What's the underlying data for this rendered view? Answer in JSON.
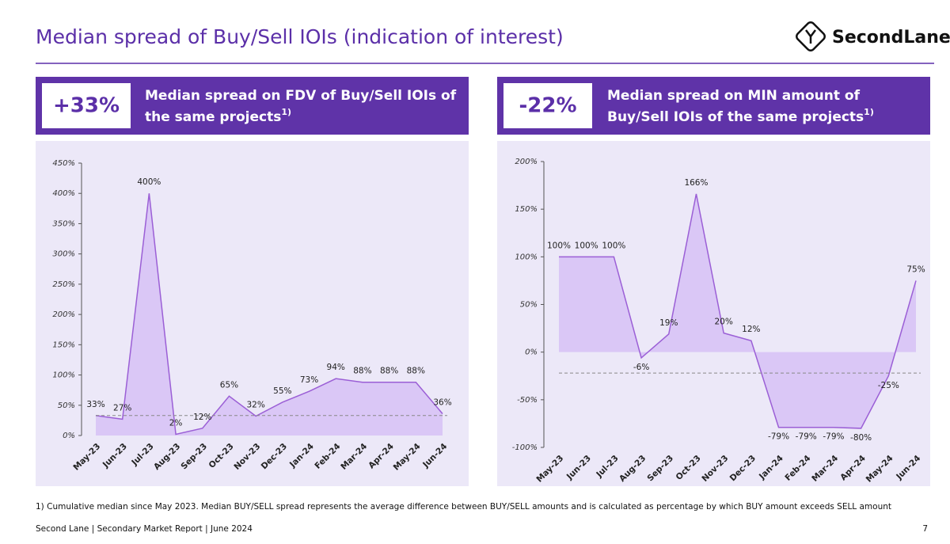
{
  "header": {
    "title": "Median spread of Buy/Sell IOIs (indication of interest)",
    "logo": "SecondLane"
  },
  "panels": [
    {
      "kpi": "+33%",
      "heading": [
        "Median spread on FDV of Buy/Sell IOIs of",
        "the same projects"
      ],
      "note_mark": "1)"
    },
    {
      "kpi": "-22%",
      "heading": [
        "Median spread on MIN amount of",
        "Buy/Sell IOIs of the same projects"
      ],
      "note_mark": "1)"
    }
  ],
  "chart_data": [
    {
      "type": "area",
      "categories": [
        "May-23",
        "Jun-23",
        "Jul-23",
        "Aug-23",
        "Sep-23",
        "Oct-23",
        "Nov-23",
        "Dec-23",
        "Jan-24",
        "Feb-24",
        "Mar-24",
        "Apr-24",
        "May-24",
        "Jun-24"
      ],
      "values": [
        33,
        27,
        400,
        2,
        12,
        65,
        32,
        55,
        73,
        94,
        88,
        88,
        88,
        36
      ],
      "value_labels": [
        "33%",
        "27%",
        "400%",
        "2%",
        "12%",
        "65%",
        "32%",
        "55%",
        "73%",
        "94%",
        "88%",
        "88%",
        "88%",
        "36%"
      ],
      "ylim": [
        0,
        450
      ],
      "yticks": [
        {
          "value": 0,
          "label": "0%"
        },
        {
          "value": 50,
          "label": "50%"
        },
        {
          "value": 100,
          "label": "100%"
        },
        {
          "value": 150,
          "label": "150%"
        },
        {
          "value": 200,
          "label": "200%"
        },
        {
          "value": 250,
          "label": "250%"
        },
        {
          "value": 300,
          "label": "300%"
        },
        {
          "value": 350,
          "label": "350%"
        },
        {
          "value": 400,
          "label": "400%"
        },
        {
          "value": 450,
          "label": "450%"
        }
      ],
      "reference": 33,
      "color": "#9b5fd6",
      "fill": "#dac7f6"
    },
    {
      "type": "area",
      "categories": [
        "May-23",
        "Jun-23",
        "Jul-23",
        "Aug-23",
        "Sep-23",
        "Oct-23",
        "Nov-23",
        "Dec-23",
        "Jan-24",
        "Feb-24",
        "Mar-24",
        "Apr-24",
        "May-24",
        "Jun-24"
      ],
      "values": [
        100,
        100,
        100,
        -6,
        19,
        166,
        20,
        12,
        -79,
        -79,
        -79,
        -80,
        -25,
        75
      ],
      "value_labels": [
        "100%",
        "100%",
        "100%",
        "-6%",
        "19%",
        "166%",
        "20%",
        "12%",
        "-79%",
        "-79%",
        "-79%",
        "-80%",
        "-25%",
        "75%"
      ],
      "ylim": [
        -100,
        200
      ],
      "yticks": [
        {
          "value": -100,
          "label": "-100%"
        },
        {
          "value": -50,
          "label": "-50%"
        },
        {
          "value": 0,
          "label": "0%"
        },
        {
          "value": 50,
          "label": "50%"
        },
        {
          "value": 100,
          "label": "100%"
        },
        {
          "value": 150,
          "label": "150%"
        },
        {
          "value": 200,
          "label": "200%"
        }
      ],
      "reference": -22,
      "color": "#9b5fd6",
      "fill": "#dac7f6"
    }
  ],
  "footnote": "1) Cumulative median since May 2023. Median BUY/SELL spread represents the average difference between BUY/SELL amounts and is calculated as percentage by which BUY amount exceeds SELL amount",
  "footer": {
    "source": "Second Lane | Secondary Market Report | June 2024",
    "page": "7"
  }
}
